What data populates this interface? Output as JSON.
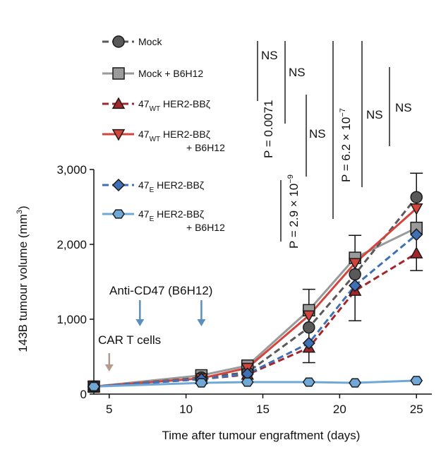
{
  "chart_data": {
    "type": "line",
    "xlabel": "Time after tumour engraftment (days)",
    "ylabel_main": "143B tumour volume (mm",
    "ylabel_sup": "3",
    "ylabel_end": ")",
    "xlim": [
      4,
      26
    ],
    "ylim": [
      0,
      3000
    ],
    "x_ticks": [
      5,
      10,
      15,
      20,
      25
    ],
    "y_ticks": [
      0,
      1000,
      2000,
      3000
    ],
    "x_tick_labels": [
      "5",
      "10",
      "15",
      "20",
      "25"
    ],
    "y_tick_labels": [
      "0",
      "1,000",
      "2,000",
      "3,000"
    ],
    "series": [
      {
        "key": "mock_b6",
        "legend_main": "Mock + B6H12",
        "legend_sub": "",
        "legend_rest": "",
        "legend_line2": "",
        "color": "#9a9a9a",
        "dash": "solid",
        "marker": "square",
        "x": [
          4,
          11,
          14,
          18,
          21,
          25
        ],
        "y": [
          100,
          250,
          380,
          1120,
          1820,
          2220
        ],
        "err": [
          0,
          0,
          0,
          0,
          0,
          0
        ]
      },
      {
        "key": "mock",
        "legend_main": "Mock",
        "legend_sub": "",
        "legend_rest": "",
        "legend_line2": "",
        "color": "#595959",
        "dash": "dashed",
        "marker": "circle",
        "x": [
          4,
          11,
          14,
          18,
          21,
          25
        ],
        "y": [
          100,
          220,
          290,
          890,
          1600,
          2630
        ],
        "err": [
          0,
          0,
          0,
          0,
          0,
          0
        ]
      },
      {
        "key": "wt_b6",
        "legend_main": "47",
        "legend_sub": "WT",
        "legend_rest": " HER2-BBζ",
        "legend_line2": "+ B6H12",
        "color": "#d2443c",
        "dash": "solid",
        "marker": "triangle-down",
        "x": [
          4,
          11,
          14,
          18,
          21,
          25
        ],
        "y": [
          100,
          210,
          350,
          1050,
          1750,
          2480
        ],
        "err": [
          0,
          0,
          0,
          0,
          0,
          0
        ]
      },
      {
        "key": "wt",
        "legend_main": "47",
        "legend_sub": "WT",
        "legend_rest": " HER2-BBζ",
        "legend_line2": "",
        "color": "#a3262a",
        "dash": "dashed",
        "marker": "triangle-up",
        "x": [
          4,
          11,
          14,
          18,
          21,
          25
        ],
        "y": [
          100,
          200,
          260,
          620,
          1380,
          1880
        ],
        "err": [
          0,
          0,
          0,
          0,
          0,
          0
        ]
      },
      {
        "key": "e",
        "legend_main": "47",
        "legend_sub": "E",
        "legend_rest": " HER2-BBζ",
        "legend_line2": "",
        "color": "#3f6fb5",
        "dash": "dashed",
        "marker": "diamond",
        "x": [
          4,
          11,
          14,
          18,
          21,
          25
        ],
        "y": [
          100,
          200,
          270,
          680,
          1450,
          2130
        ],
        "err": [
          0,
          0,
          0,
          0,
          0,
          0
        ]
      },
      {
        "key": "e_b6",
        "legend_main": "47",
        "legend_sub": "E",
        "legend_rest": " HER2-BBζ",
        "legend_line2": "+ B6H12",
        "color": "#6fa8d6",
        "dash": "solid",
        "marker": "hexagon",
        "x": [
          4,
          11,
          14,
          18,
          21,
          25
        ],
        "y": [
          100,
          150,
          160,
          160,
          150,
          180
        ],
        "err": [
          0,
          0,
          0,
          0,
          0,
          0
        ]
      }
    ],
    "legend_order": [
      "mock",
      "mock_b6",
      "wt",
      "wt_b6",
      "e",
      "e_b6"
    ],
    "error_bars": [
      {
        "x": 18,
        "y_low": 420,
        "y_high": 1400
      },
      {
        "x": 21,
        "y_low": 980,
        "y_high": 2120
      },
      {
        "x": 25,
        "y_low": 1650,
        "y_high": 2950
      }
    ],
    "annotations": {
      "car_t": "CAR T cells",
      "anti_cd47": "Anti-CD47 (B6H12)",
      "car_t_arrow_day": 5,
      "anti_cd47_arrow_days": [
        7,
        11
      ],
      "car_t_color": "#b59b8c",
      "anti_cd47_color": "#5b8fbe"
    },
    "significance": {
      "ns": "NS",
      "p1_main": "P = 0.0071",
      "p2_main": "P = 2.9 × 10",
      "p2_exp": "−9",
      "p3_main": "P = 6.2 × 10",
      "p3_exp": "−7"
    }
  }
}
